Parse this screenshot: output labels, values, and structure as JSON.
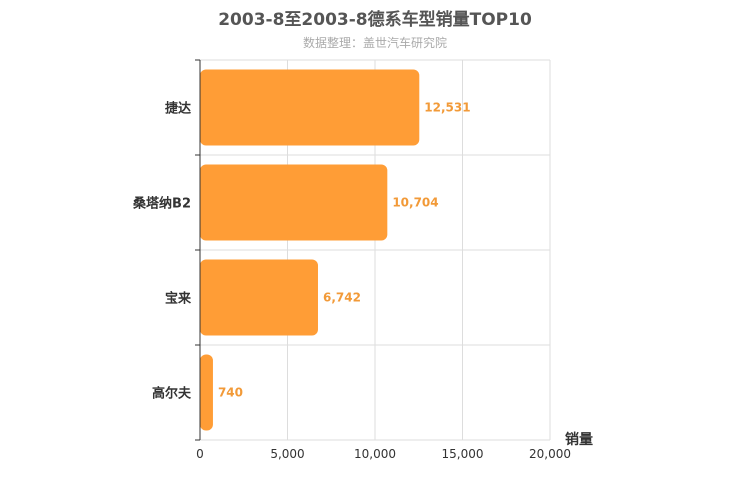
{
  "chart_data": {
    "type": "bar",
    "orientation": "horizontal",
    "title": "2003-8至2003-8德系车型销量TOP10",
    "subtitle": "数据整理：盖世汽车研究院",
    "categories": [
      "捷达",
      "桑塔纳B2",
      "宝来",
      "高尔夫"
    ],
    "values": [
      12531,
      10704,
      6742,
      740
    ],
    "value_labels": [
      "12,531",
      "10,704",
      "6,742",
      "740"
    ],
    "xlabel": "销量",
    "ylabel": "",
    "xlim": [
      0,
      20000
    ],
    "x_ticks": [
      0,
      5000,
      10000,
      15000,
      20000
    ],
    "x_tick_labels": [
      "0",
      "5,000",
      "10,000",
      "15,000",
      "20,000"
    ],
    "grid": true,
    "bar_color": "#ff9d36",
    "label_color": "#f29a38"
  }
}
